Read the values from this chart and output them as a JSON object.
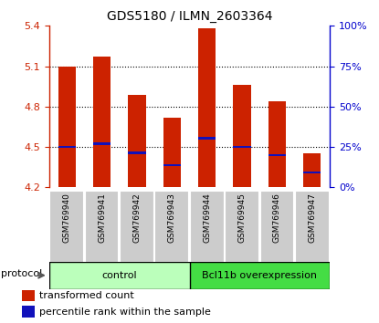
{
  "title": "GDS5180 / ILMN_2603364",
  "samples": [
    "GSM769940",
    "GSM769941",
    "GSM769942",
    "GSM769943",
    "GSM769944",
    "GSM769945",
    "GSM769946",
    "GSM769947"
  ],
  "bar_tops": [
    5.1,
    5.17,
    4.89,
    4.72,
    5.38,
    4.96,
    4.84,
    4.45
  ],
  "bar_bottom": 4.2,
  "blue_values": [
    4.5,
    4.525,
    4.455,
    4.365,
    4.565,
    4.5,
    4.44,
    4.31
  ],
  "ymin": 4.2,
  "ymax": 5.4,
  "yticks_left": [
    4.2,
    4.5,
    4.8,
    5.1,
    5.4
  ],
  "yticks_right_pct": [
    0,
    25,
    50,
    75,
    100
  ],
  "groups": [
    {
      "label": "control",
      "start": 0,
      "end": 4,
      "color": "#bbffbb"
    },
    {
      "label": "Bcl11b overexpression",
      "start": 4,
      "end": 8,
      "color": "#44dd44"
    }
  ],
  "bar_color": "#cc2200",
  "blue_color": "#1111bb",
  "legend_items": [
    {
      "label": "transformed count",
      "color": "#cc2200"
    },
    {
      "label": "percentile rank within the sample",
      "color": "#1111bb"
    }
  ],
  "protocol_label": "protocol",
  "label_color_left": "#cc2200",
  "label_color_right": "#0000cc",
  "bar_width": 0.5,
  "blue_bar_thickness": 0.018
}
